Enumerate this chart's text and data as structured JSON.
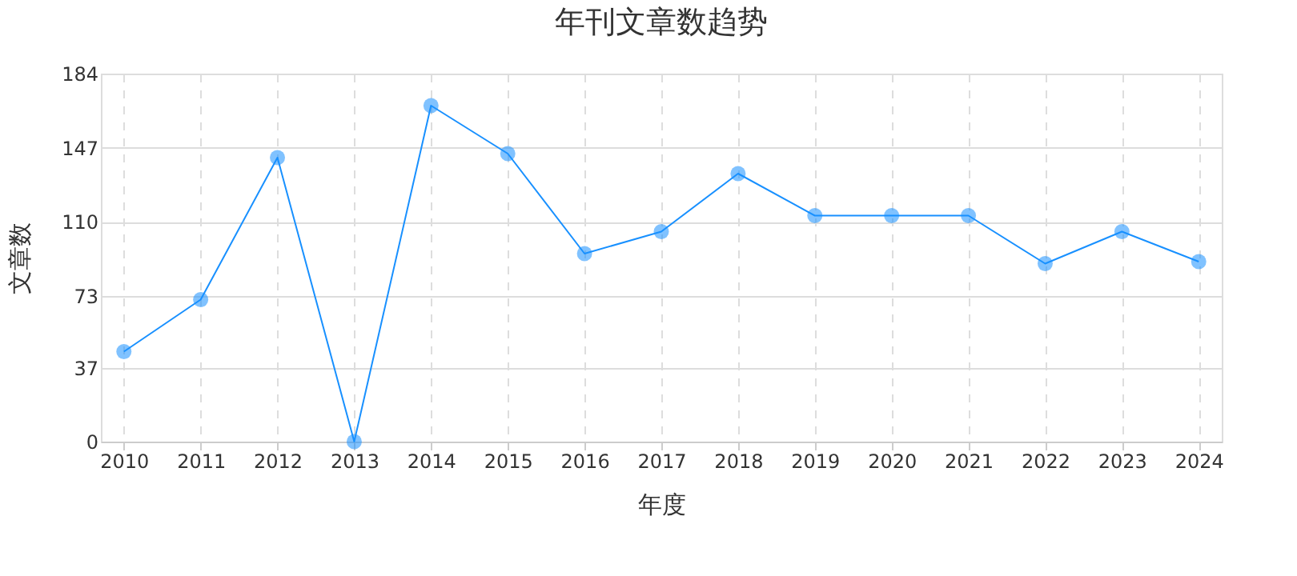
{
  "chart_data": {
    "type": "line",
    "title": "年刊文章数趋势",
    "xlabel": "年度",
    "ylabel": "文章数",
    "categories": [
      "2010",
      "2011",
      "2012",
      "2013",
      "2014",
      "2015",
      "2016",
      "2017",
      "2018",
      "2019",
      "2020",
      "2021",
      "2022",
      "2023",
      "2024"
    ],
    "series": [
      {
        "color": "#1890ff",
        "values": [
          45,
          71,
          142,
          0,
          168,
          144,
          94,
          105,
          134,
          113,
          113,
          113,
          89,
          105,
          90
        ]
      }
    ],
    "ylim": [
      0,
      184
    ],
    "yticks": [
      0,
      37,
      73,
      110,
      147,
      184
    ],
    "grid": true,
    "marker": "circle",
    "line_style": "solid"
  }
}
